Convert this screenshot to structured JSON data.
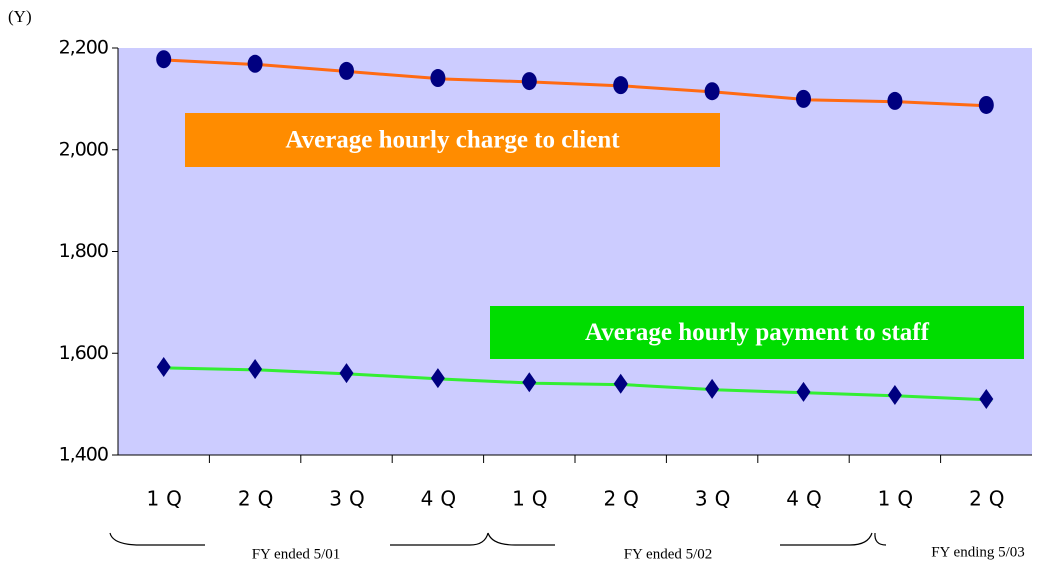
{
  "chart_data": {
    "type": "line",
    "y_unit": "(Y)",
    "categories": [
      "1Q",
      "2Q",
      "3Q",
      "4Q",
      "1Q",
      "2Q",
      "3Q",
      "4Q",
      "1Q",
      "2Q"
    ],
    "groups": [
      "FY ended 5/01",
      "FY ended 5/02",
      "FY ending 5/03"
    ],
    "series": [
      {
        "name": "Average hourly charge to client",
        "color": "#ff6a13",
        "label_color": "#ff8c00",
        "marker": "circle",
        "marker_color": "#000080",
        "values": [
          2178,
          2169,
          2155,
          2141,
          2135,
          2127,
          2115,
          2100,
          2096,
          2088
        ]
      },
      {
        "name": "Average hourly payment to staff",
        "color": "#33ee33",
        "label_color": "#00dd00",
        "marker": "diamond",
        "marker_color": "#000080",
        "values": [
          1573,
          1569,
          1561,
          1551,
          1543,
          1540,
          1530,
          1524,
          1518,
          1510
        ]
      }
    ],
    "ylim": [
      1400,
      2200
    ],
    "yticks": [
      {
        "value": 1400,
        "label": "1,400"
      },
      {
        "value": 1600,
        "label": "1,600"
      },
      {
        "value": 1800,
        "label": "1,800"
      },
      {
        "value": 2000,
        "label": "2,000"
      },
      {
        "value": 2200,
        "label": "2,200"
      }
    ],
    "plot_background": "#ccccff"
  }
}
